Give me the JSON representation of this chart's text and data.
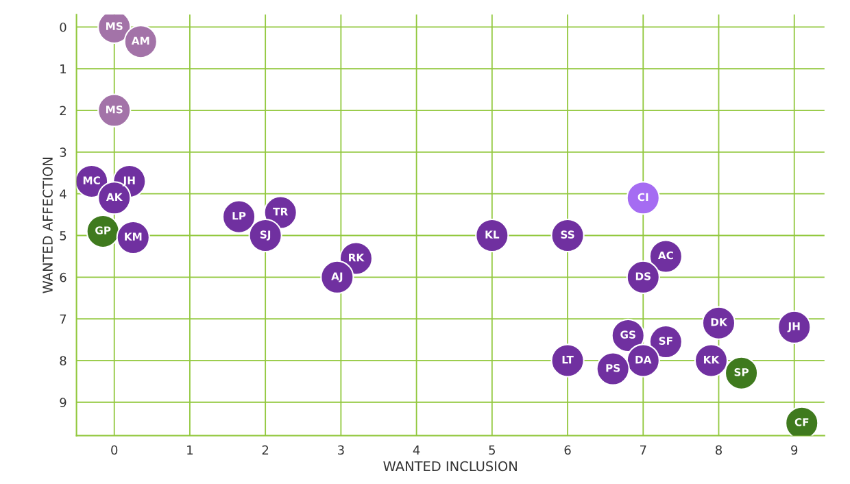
{
  "chart_data": {
    "type": "scatter",
    "xlabel": "WANTED INCLUSION",
    "ylabel": "WANTED AFFECTION",
    "xlim": [
      -0.5,
      9.4
    ],
    "ylim": [
      9.8,
      -0.3
    ],
    "xticks": [
      0,
      1,
      2,
      3,
      4,
      5,
      6,
      7,
      8,
      9
    ],
    "yticks": [
      0,
      1,
      2,
      3,
      4,
      5,
      6,
      7,
      8,
      9
    ],
    "grid": true,
    "marker": "circle",
    "series": [
      {
        "x": [
          0,
          0.35,
          0,
          -0.3,
          0.2,
          0,
          -0.15,
          0.25,
          1.65,
          2.2,
          2,
          3.2,
          2.95,
          5,
          6,
          7,
          7.3,
          7,
          8,
          9,
          6.8,
          7.3,
          7,
          6,
          6.6,
          7.9,
          8.3,
          9.1
        ],
        "values": [
          0,
          0.35,
          2,
          3.7,
          3.7,
          4.1,
          4.9,
          5.05,
          4.55,
          4.45,
          5,
          5.55,
          6,
          5,
          5,
          4.1,
          5.5,
          6,
          7.1,
          7.2,
          7.4,
          7.55,
          8,
          8,
          8.2,
          8,
          8.3,
          9.5
        ],
        "colors": [
          "#a373a8",
          "#a373a8",
          "#a373a8",
          "#7030a0",
          "#7030a0",
          "#7030a0",
          "#3f7a1e",
          "#7030a0",
          "#7030a0",
          "#7030a0",
          "#7030a0",
          "#7030a0",
          "#7030a0",
          "#7030a0",
          "#7030a0",
          "#a56cf2",
          "#7030a0",
          "#7030a0",
          "#7030a0",
          "#7030a0",
          "#7030a0",
          "#7030a0",
          "#7030a0",
          "#7030a0",
          "#7030a0",
          "#7030a0",
          "#3f7a1e",
          "#3f7a1e"
        ]
      }
    ],
    "annotations": [
      {
        "text": "MS",
        "x": 0,
        "y": 0
      },
      {
        "text": "AM",
        "x": 0.35,
        "y": 0.35
      },
      {
        "text": "MS",
        "x": 0,
        "y": 2
      },
      {
        "text": "MC",
        "x": -0.3,
        "y": 3.7
      },
      {
        "text": "JH",
        "x": 0.2,
        "y": 3.7
      },
      {
        "text": "AK",
        "x": 0,
        "y": 4.1
      },
      {
        "text": "GP",
        "x": -0.15,
        "y": 4.9
      },
      {
        "text": "KM",
        "x": 0.25,
        "y": 5.05
      },
      {
        "text": "LP",
        "x": 1.65,
        "y": 4.55
      },
      {
        "text": "TR",
        "x": 2.2,
        "y": 4.45
      },
      {
        "text": "SJ",
        "x": 2,
        "y": 5
      },
      {
        "text": "RK",
        "x": 3.2,
        "y": 5.55
      },
      {
        "text": "AJ",
        "x": 2.95,
        "y": 6
      },
      {
        "text": "KL",
        "x": 5,
        "y": 5
      },
      {
        "text": "SS",
        "x": 6,
        "y": 5
      },
      {
        "text": "CI",
        "x": 7,
        "y": 4.1
      },
      {
        "text": "AC",
        "x": 7.3,
        "y": 5.5
      },
      {
        "text": "DS",
        "x": 7,
        "y": 6
      },
      {
        "text": "DK",
        "x": 8,
        "y": 7.1
      },
      {
        "text": "JH",
        "x": 9,
        "y": 7.2
      },
      {
        "text": "GS",
        "x": 6.8,
        "y": 7.4
      },
      {
        "text": "SF",
        "x": 7.3,
        "y": 7.55
      },
      {
        "text": "DA",
        "x": 7,
        "y": 8
      },
      {
        "text": "LT",
        "x": 6,
        "y": 8
      },
      {
        "text": "PS",
        "x": 6.6,
        "y": 8.2
      },
      {
        "text": "KK",
        "x": 7.9,
        "y": 8
      },
      {
        "text": "SP",
        "x": 8.3,
        "y": 8.3
      },
      {
        "text": "CF",
        "x": 9.1,
        "y": 9.5
      }
    ]
  }
}
